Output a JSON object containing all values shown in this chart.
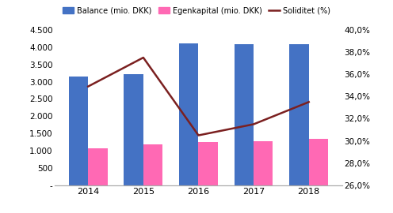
{
  "years": [
    2014,
    2015,
    2016,
    2017,
    2018
  ],
  "balance": [
    3150,
    3220,
    4100,
    4075,
    4075
  ],
  "egenkapital": [
    1075,
    1175,
    1250,
    1275,
    1350
  ],
  "soliditet": [
    34.9,
    37.5,
    30.5,
    31.5,
    33.5
  ],
  "bar_color_balance": "#4472C4",
  "bar_color_egenkapital": "#FF69B4",
  "line_color": "#7B2020",
  "ylim_left": [
    0,
    4500
  ],
  "ylim_right": [
    26.0,
    40.0
  ],
  "yticks_left": [
    0,
    500,
    1000,
    1500,
    2000,
    2500,
    3000,
    3500,
    4000,
    4500
  ],
  "ytick_labels_left": [
    "-",
    "500",
    "1.000",
    "1.500",
    "2.000",
    "2.500",
    "3.000",
    "3.500",
    "4.000",
    "4.500"
  ],
  "yticks_right": [
    26.0,
    28.0,
    30.0,
    32.0,
    34.0,
    36.0,
    38.0,
    40.0
  ],
  "ytick_labels_right": [
    "26,0%",
    "28,0%",
    "30,0%",
    "32,0%",
    "34,0%",
    "36,0%",
    "38,0%",
    "40,0%"
  ],
  "legend_labels": [
    "Balance (mio. DKK)",
    "Egenkapital (mio. DKK)",
    "Soliditet (%)"
  ],
  "background_color": "#FFFFFF",
  "bar_width": 0.35
}
